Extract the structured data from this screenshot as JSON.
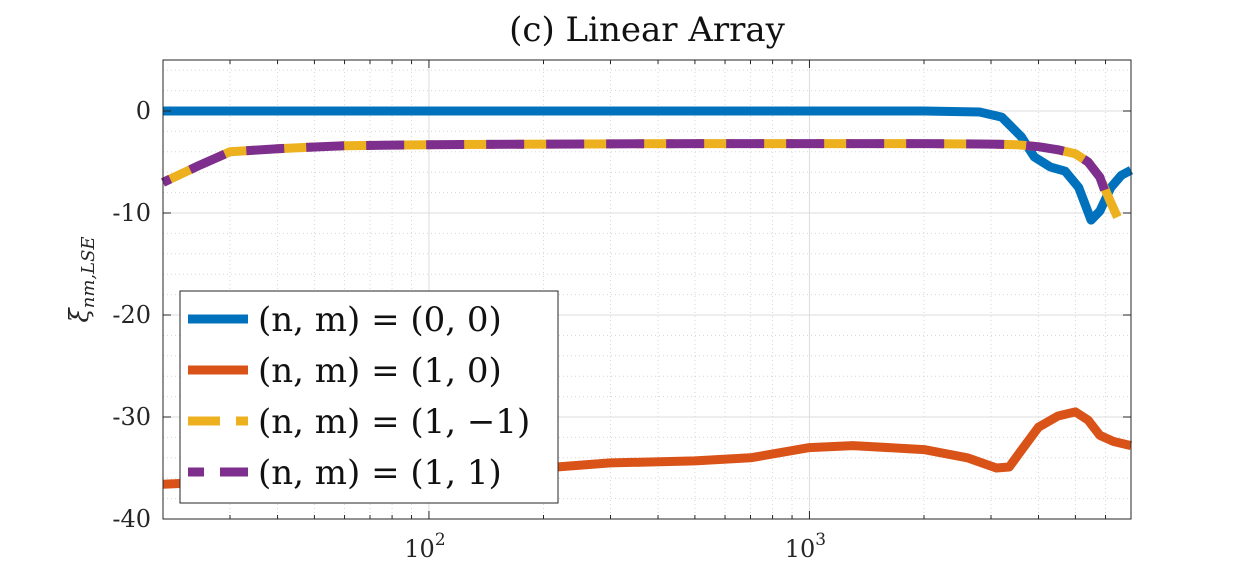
{
  "chart_data": {
    "type": "line",
    "title": "(c) Linear Array",
    "ylabel": "ξ_{nm,LSE}",
    "ylabel_main": "ξ",
    "ylabel_sub": "nm,LSE",
    "xlabel": "",
    "xscale": "log",
    "xlim": [
      20,
      7000
    ],
    "ylim": [
      -40,
      5
    ],
    "yticks": [
      0,
      -10,
      -20,
      -30,
      -40
    ],
    "ytick_labels": [
      "0",
      "-10",
      "-20",
      "-30",
      "-40"
    ],
    "xticks": [
      100,
      1000
    ],
    "xtick_labels": [
      {
        "base": "10",
        "exp": "2"
      },
      {
        "base": "10",
        "exp": "3"
      }
    ],
    "grid": true,
    "minor_grid": true,
    "legend_position": "bottom-left",
    "series": [
      {
        "name": "(n, m) = (0, 0)",
        "color": "#0072BD",
        "dash": "solid",
        "x": [
          20,
          50,
          100,
          500,
          1000,
          2000,
          2800,
          3200,
          3600,
          3900,
          4300,
          4700,
          5100,
          5500,
          5800,
          6200,
          6600,
          7000
        ],
        "y": [
          0,
          0,
          0,
          0,
          0,
          0,
          -0.1,
          -0.6,
          -2.5,
          -4.5,
          -5.5,
          -5.9,
          -7.5,
          -10.7,
          -9.8,
          -7.5,
          -6.3,
          -5.8
        ]
      },
      {
        "name": "(n, m) = (1, 0)",
        "color": "#D95319",
        "dash": "solid",
        "x": [
          20,
          30,
          50,
          100,
          200,
          300,
          500,
          700,
          1000,
          1300,
          2000,
          2600,
          3100,
          3350,
          3600,
          4000,
          4500,
          5000,
          5400,
          5800,
          6300,
          7000
        ],
        "y": [
          -36.6,
          -36.3,
          -36.0,
          -35.6,
          -35.0,
          -34.5,
          -34.3,
          -34.0,
          -33.0,
          -32.8,
          -33.2,
          -34.0,
          -35.0,
          -34.9,
          -33.3,
          -31.0,
          -29.9,
          -29.5,
          -30.3,
          -31.8,
          -32.4,
          -32.8
        ]
      },
      {
        "name": "(n, m) = (1, −1)",
        "color": "#EDB120",
        "dash": "dash",
        "x": [
          20,
          25,
          30,
          40,
          60,
          100,
          200,
          500,
          1000,
          2000,
          3000,
          3500,
          4000,
          4500,
          5000,
          5400,
          5800,
          6200,
          6500,
          7000
        ],
        "y": [
          -7.0,
          -5.3,
          -4.0,
          -3.7,
          -3.4,
          -3.3,
          -3.25,
          -3.2,
          -3.2,
          -3.2,
          -3.25,
          -3.3,
          -3.5,
          -3.8,
          -4.2,
          -5.0,
          -6.5,
          -9.0,
          -10.7,
          -10.9
        ]
      },
      {
        "name": "(n, m) = (1, 1)",
        "color": "#7E2F8E",
        "dash": "dash",
        "x": [
          20,
          25,
          30,
          40,
          60,
          100,
          200,
          500,
          1000,
          2000,
          3000,
          3500,
          4000,
          4500,
          5000,
          5400,
          5800,
          6200
        ],
        "y": [
          -7.0,
          -5.3,
          -4.0,
          -3.7,
          -3.4,
          -3.3,
          -3.25,
          -3.2,
          -3.2,
          -3.2,
          -3.25,
          -3.3,
          -3.5,
          -3.8,
          -4.2,
          -5.0,
          -6.5,
          -9.5
        ]
      }
    ]
  }
}
